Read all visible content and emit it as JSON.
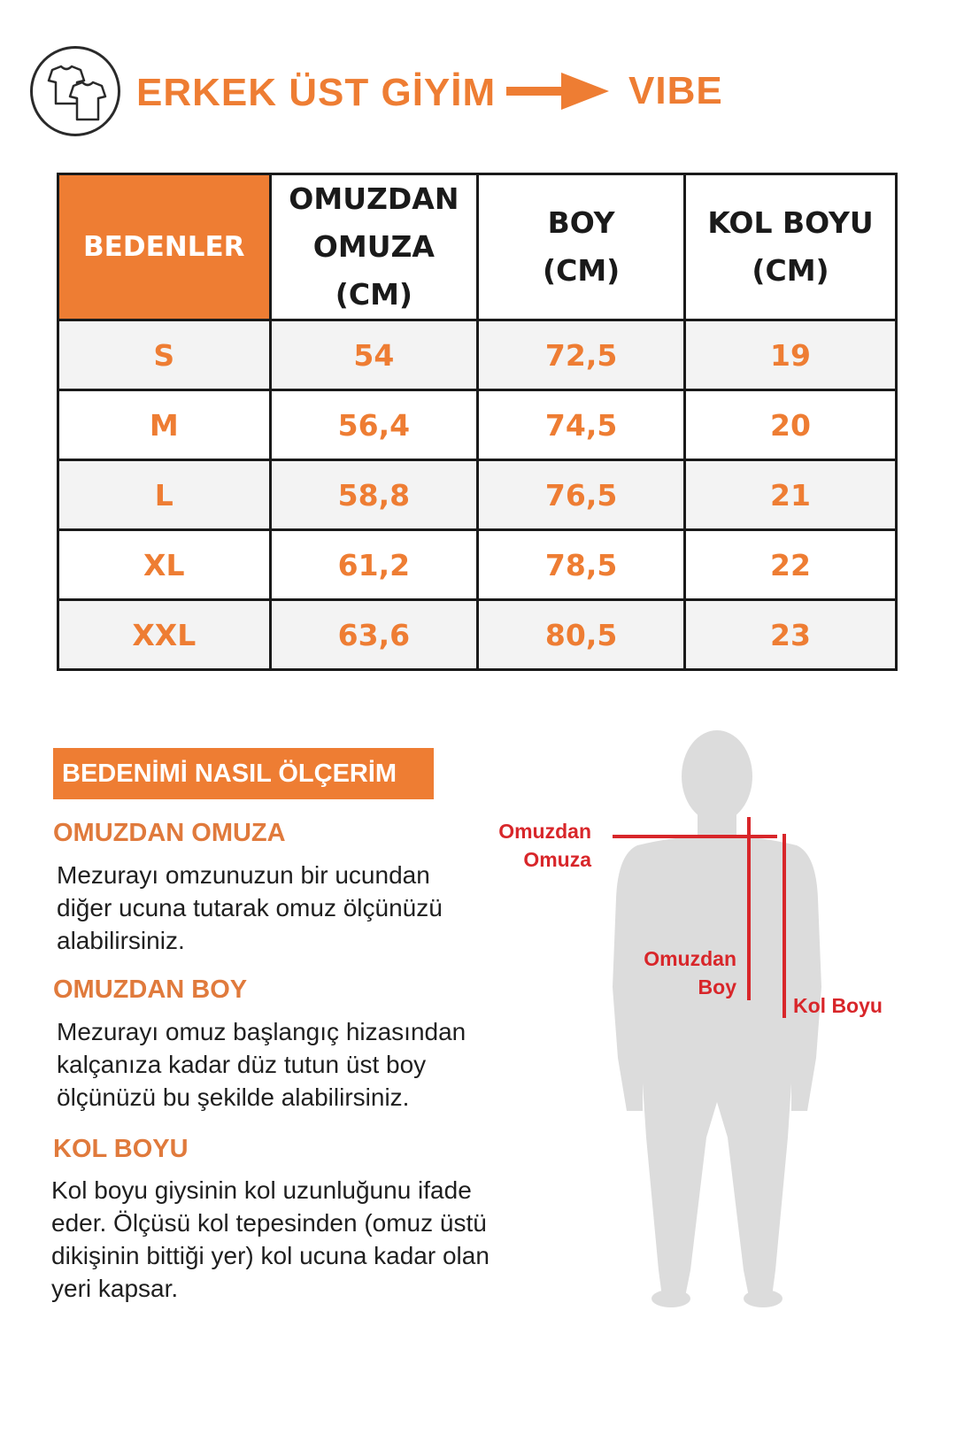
{
  "header": {
    "logo_icon": "tshirt-icon",
    "title": "ERKEK ÜST GİYİM",
    "arrow_icon": "arrow-right-icon",
    "brand": "VIBE",
    "accent_color": "#ee7d33"
  },
  "size_table": {
    "headers": {
      "size": "BEDENLER",
      "shoulder": [
        "OMUZDAN",
        "OMUZA",
        "(CM)"
      ],
      "length": [
        "BOY",
        "(CM)"
      ],
      "sleeve": [
        "KOL BOYU",
        "(CM)"
      ]
    },
    "rows": [
      {
        "size": "S",
        "shoulder": "54",
        "length": "72,5",
        "sleeve": "19"
      },
      {
        "size": "M",
        "shoulder": "56,4",
        "length": "74,5",
        "sleeve": "20"
      },
      {
        "size": "L",
        "shoulder": "58,8",
        "length": "76,5",
        "sleeve": "21"
      },
      {
        "size": "XL",
        "shoulder": "61,2",
        "length": "78,5",
        "sleeve": "22"
      },
      {
        "size": "XXL",
        "shoulder": "63,6",
        "length": "80,5",
        "sleeve": "23"
      }
    ]
  },
  "guide": {
    "banner": "BEDENİMİ NASIL ÖLÇERİM",
    "sections": [
      {
        "title": "OMUZDAN OMUZA",
        "lines": [
          "Mezurayı omzunuzun bir ucundan",
          "diğer ucuna tutarak omuz ölçünüzü",
          "alabilirsiniz."
        ]
      },
      {
        "title": "OMUZDAN BOY",
        "lines": [
          "Mezurayı omuz başlangıç hizasından",
          "kalçanıza kadar düz tutun üst boy",
          "ölçünüzü bu şekilde alabilirsiniz."
        ]
      },
      {
        "title": "KOL BOYU",
        "lines": [
          "Kol boyu giysinin kol uzunluğunu ifade",
          "eder. Ölçüsü kol tepesinden (omuz üstü",
          "dikişinin bittiği yer) kol ucuna kadar olan",
          "yeri kapsar."
        ]
      }
    ]
  },
  "figure": {
    "icon": "body-silhouette-icon",
    "label_shoulder": [
      "Omuzdan",
      "Omuza"
    ],
    "label_length": [
      "Omuzdan",
      "Boy"
    ],
    "label_sleeve": "Kol Boyu",
    "measure_color": "#d8262a"
  }
}
